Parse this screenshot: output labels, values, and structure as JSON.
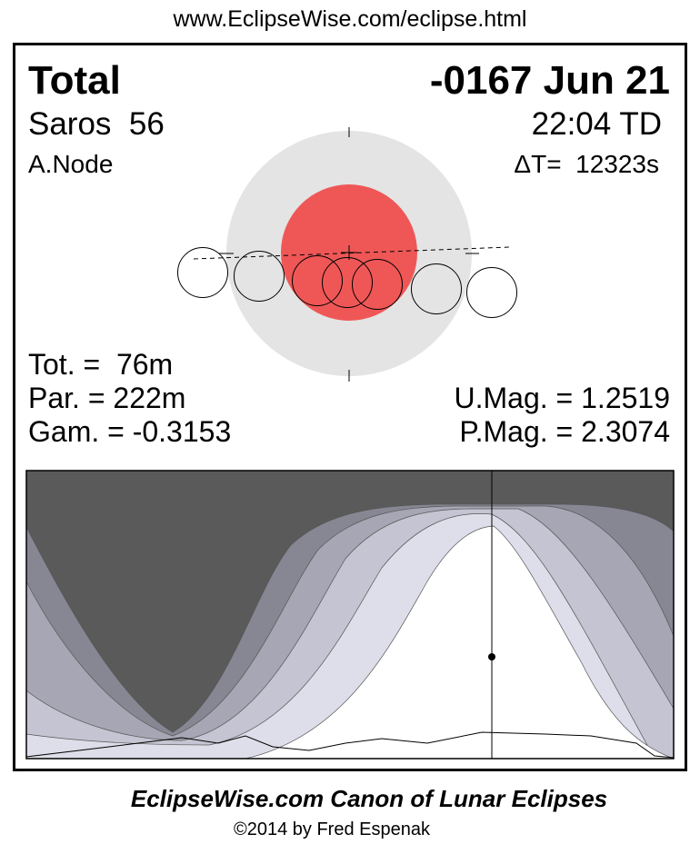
{
  "header": {
    "url": "www.EclipseWise.com/eclipse.html"
  },
  "eclipse": {
    "type": "Total",
    "date": "-0167 Jun 21",
    "saros": "Saros  56",
    "time": "22:04 TD",
    "node": "A.Node",
    "delta_t": "ΔT=  12323s",
    "totality": "Tot. =  76m",
    "partial": "Par. = 222m",
    "gamma": "Gam. = -0.3153",
    "umbral_mag": "U.Mag. = 1.2519",
    "penumbral_mag": "P.Mag. = 2.3074"
  },
  "colors": {
    "umbra": "#ef5757",
    "penumbra": "#e4e4e4",
    "night": "#5a5a5a",
    "bands": [
      "#878794",
      "#a6a6b4",
      "#c4c4d2",
      "#dedeea",
      "#ffffff"
    ]
  },
  "footer": {
    "title": "EclipseWise.com Canon of Lunar Eclipses",
    "copyright": "©2014 by Fred Espenak"
  }
}
